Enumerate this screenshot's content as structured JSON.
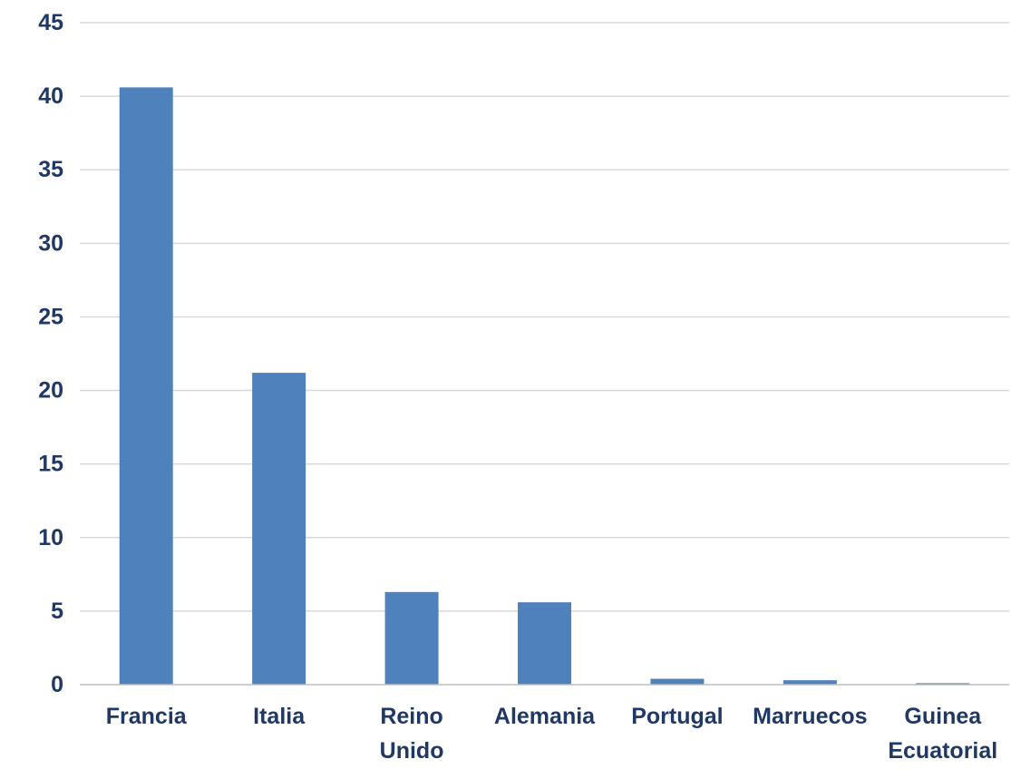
{
  "chart_data": {
    "type": "bar",
    "title": "",
    "xlabel": "",
    "ylabel": "",
    "categories": [
      [
        "Francia"
      ],
      [
        "Italia"
      ],
      [
        "Reino",
        "Unido"
      ],
      [
        "Alemania"
      ],
      [
        "Portugal"
      ],
      [
        "Marruecos"
      ],
      [
        "Guinea",
        "Ecuatorial"
      ]
    ],
    "values": [
      40.6,
      21.2,
      6.3,
      5.6,
      0.4,
      0.3,
      0.1
    ],
    "ylim": [
      0,
      45
    ],
    "yticks": [
      "0",
      "5",
      "10",
      "15",
      "20",
      "25",
      "30",
      "35",
      "40",
      "45"
    ],
    "grid": true,
    "legend": "none",
    "colors": {
      "bar": "#4F81BD",
      "grid": "#D9D9D9",
      "axis": "#BFBFBF",
      "text": "#1F3864"
    }
  }
}
